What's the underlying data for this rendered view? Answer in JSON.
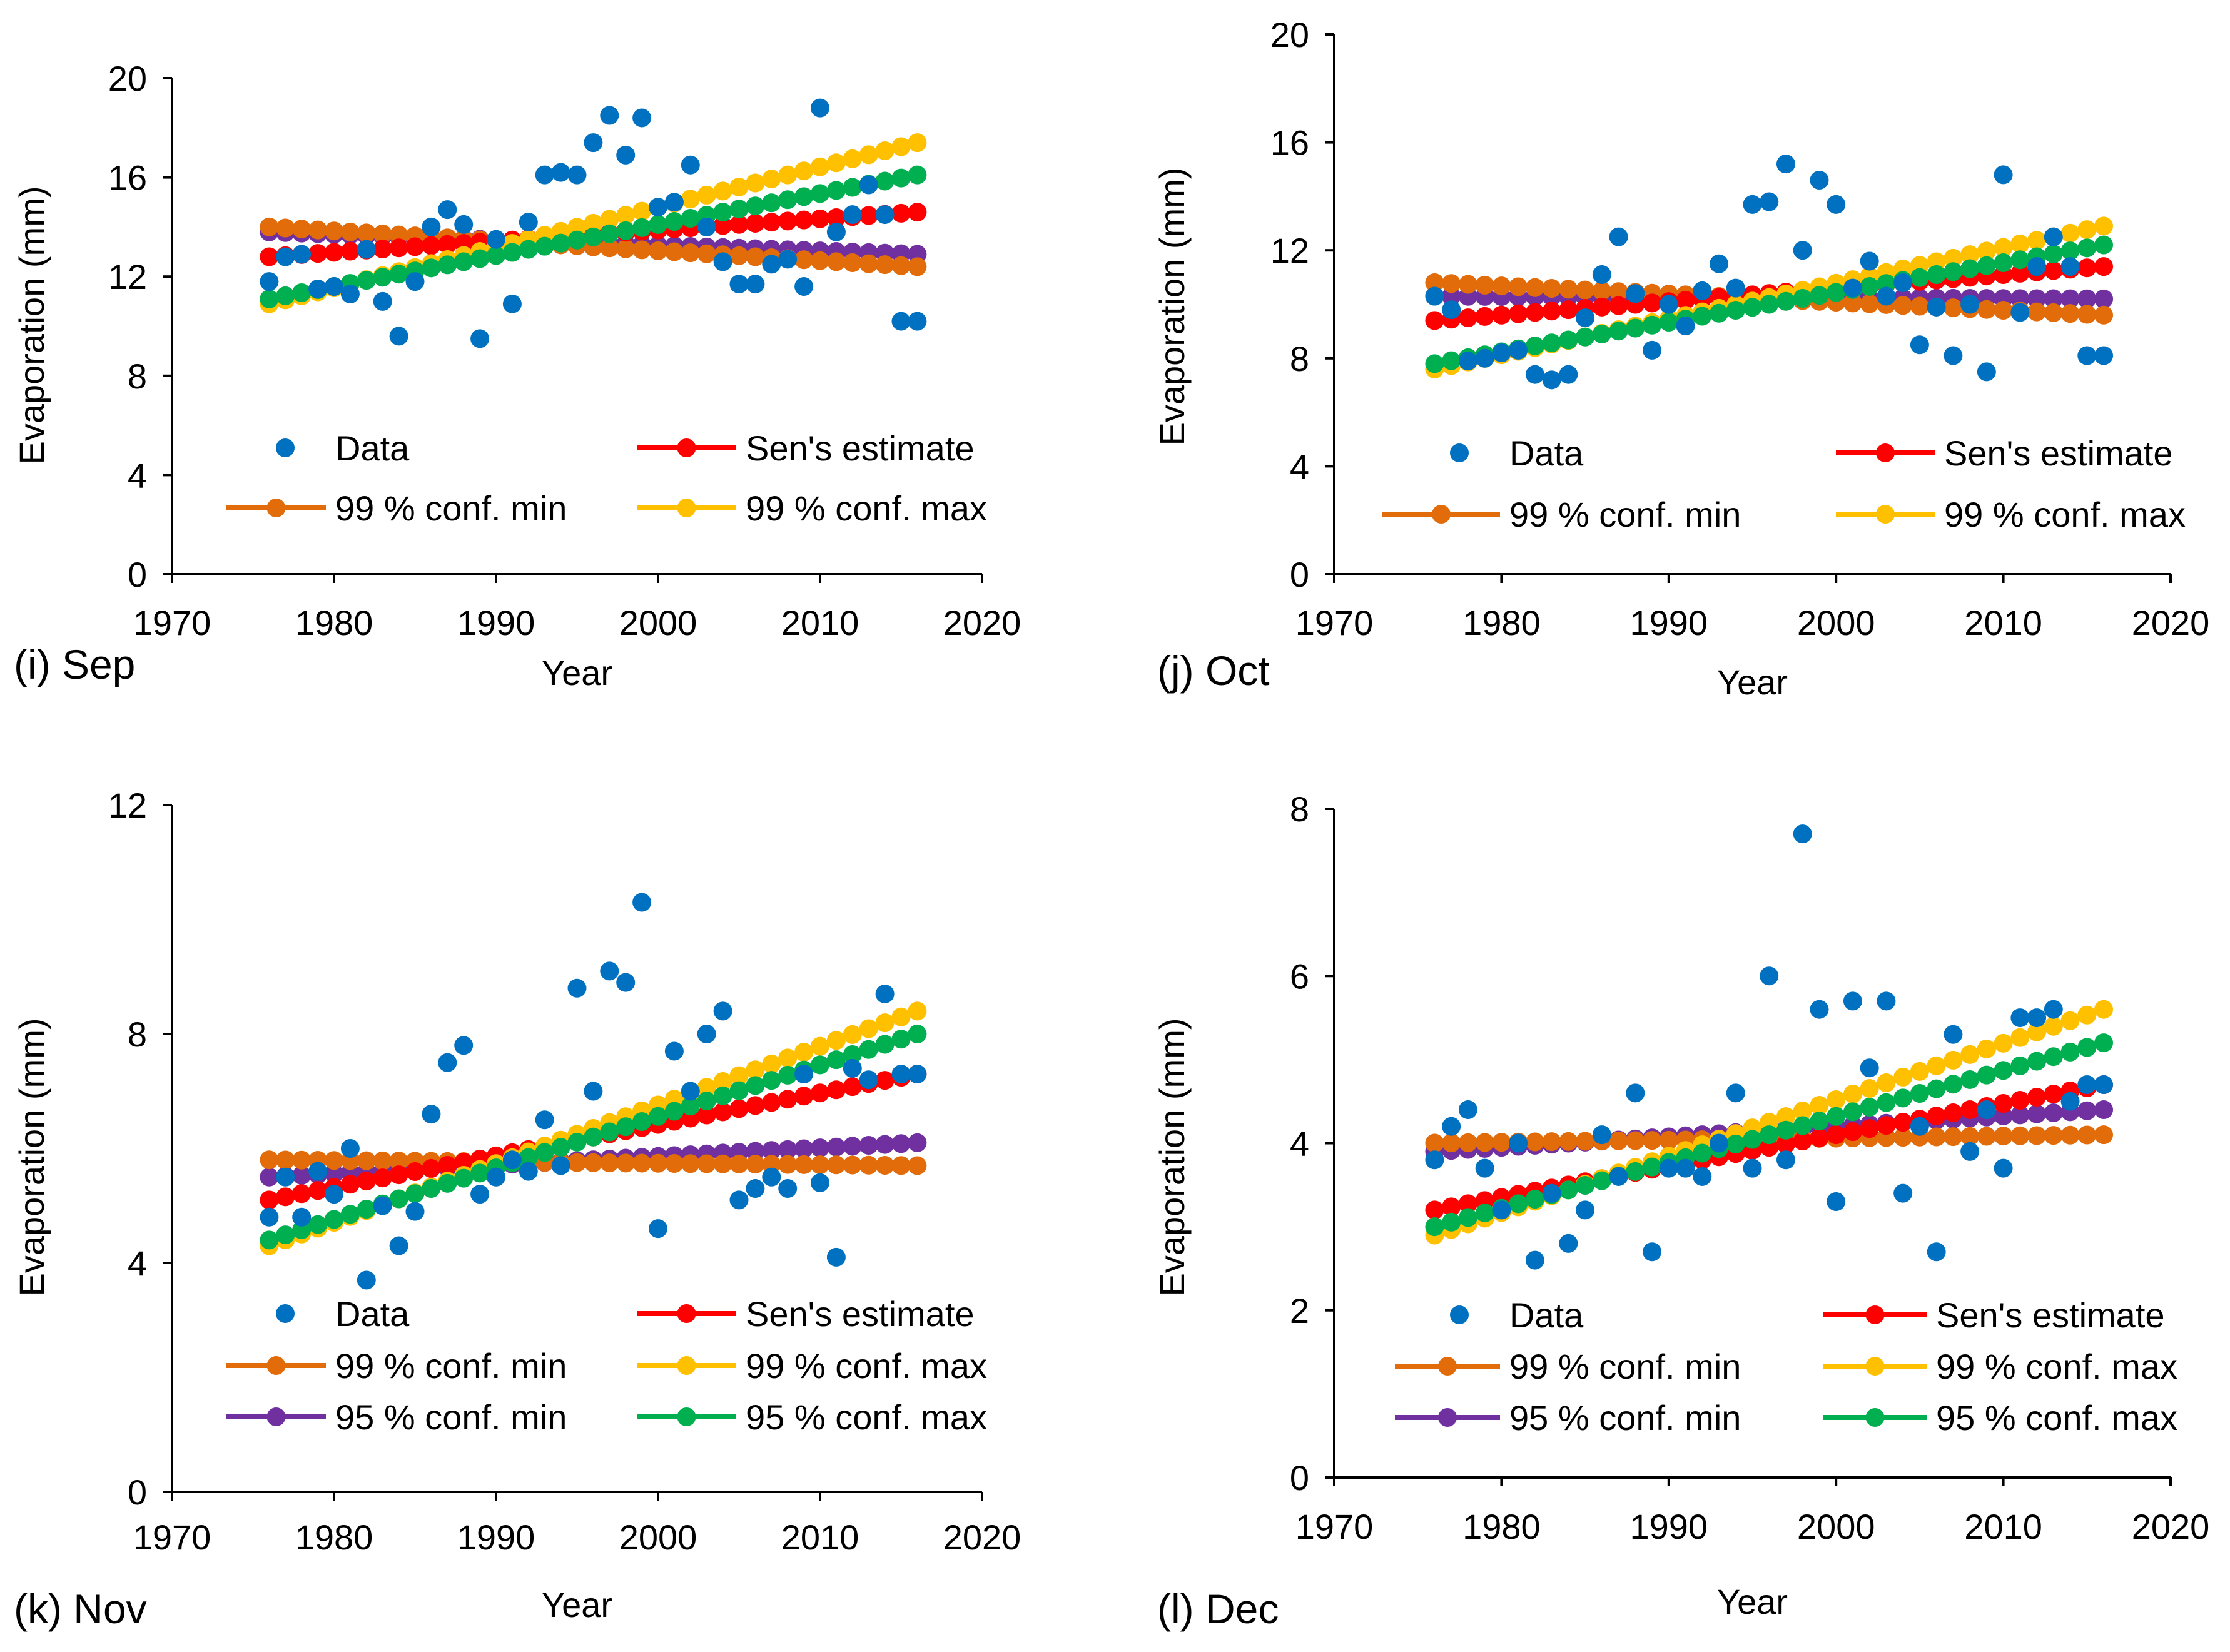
{
  "colors": {
    "data": "#0070C0",
    "sens_estimate": "#FF0000",
    "conf99_min": "#E36C0A",
    "conf99_max": "#FFC000",
    "conf95_min": "#7030A0",
    "conf95_max": "#00B050",
    "axis": "#000000"
  },
  "chart_data": [
    {
      "type": "scatter",
      "panel_label": "(i) Sep",
      "xlabel": "Year",
      "ylabel": "Evaporation (mm)",
      "xlim": [
        1970,
        2020
      ],
      "ylim": [
        0,
        20
      ],
      "x_ticks": [
        1970,
        1980,
        1990,
        2000,
        2010,
        2020
      ],
      "y_ticks": [
        0,
        4,
        8,
        12,
        16,
        20
      ],
      "grid": false,
      "legend": [
        {
          "key": "data",
          "label": "Data"
        },
        {
          "key": "sens_estimate",
          "label": "Sen's estimate"
        },
        {
          "key": "conf99_min",
          "label": "99 % conf. min"
        },
        {
          "key": "conf99_max",
          "label": "99 % conf. max"
        },
        {
          "key": "conf95_min",
          "label": ""
        },
        {
          "key": "conf95_max",
          "label": ""
        }
      ],
      "series": [
        {
          "name": "Data",
          "key": "data",
          "kind": "scatter",
          "x": [
            1976,
            1977,
            1978,
            1979,
            1980,
            1981,
            1982,
            1983,
            1984,
            1985,
            1986,
            1987,
            1988,
            1989,
            1990,
            1991,
            1992,
            1993,
            1994,
            1995,
            1996,
            1997,
            1998,
            1999,
            2000,
            2001,
            2002,
            2003,
            2004,
            2005,
            2006,
            2007,
            2008,
            2009,
            2010,
            2011,
            2012,
            2013,
            2014,
            2015,
            2016
          ],
          "y": [
            11.8,
            12.8,
            12.9,
            11.5,
            11.6,
            11.3,
            13.1,
            11.0,
            9.6,
            11.8,
            14.0,
            14.7,
            14.1,
            9.5,
            13.5,
            10.9,
            14.2,
            16.1,
            16.2,
            16.1,
            17.4,
            18.5,
            16.9,
            18.4,
            14.8,
            15.0,
            16.5,
            14.0,
            12.6,
            11.7,
            11.7,
            12.5,
            12.7,
            11.6,
            18.8,
            13.8,
            14.5,
            15.7,
            14.5,
            10.2,
            10.2
          ]
        },
        {
          "name": "Sen's estimate",
          "key": "sens_estimate",
          "kind": "line",
          "x_range": [
            1976,
            2016
          ],
          "y_range": [
            12.8,
            14.6
          ]
        },
        {
          "name": "99 % conf. min",
          "key": "conf99_min",
          "kind": "line",
          "x_range": [
            1976,
            2016
          ],
          "y_range": [
            14.0,
            12.4
          ]
        },
        {
          "name": "99 % conf. max",
          "key": "conf99_max",
          "kind": "line",
          "x_range": [
            1976,
            2016
          ],
          "y_range": [
            10.9,
            17.4
          ]
        },
        {
          "name": "95 % conf. min",
          "key": "conf95_min",
          "kind": "line",
          "x_range": [
            1976,
            2016
          ],
          "y_range": [
            13.8,
            12.9
          ]
        },
        {
          "name": "95 % conf. max",
          "key": "conf95_max",
          "kind": "line",
          "x_range": [
            1976,
            2016
          ],
          "y_range": [
            11.1,
            16.1
          ]
        }
      ]
    },
    {
      "type": "scatter",
      "panel_label": "(j) Oct",
      "xlabel": "Year",
      "ylabel": "Evaporation (mm)",
      "xlim": [
        1970,
        2020
      ],
      "ylim": [
        0,
        20
      ],
      "x_ticks": [
        1970,
        1980,
        1990,
        2000,
        2010,
        2020
      ],
      "y_ticks": [
        0,
        4,
        8,
        12,
        16,
        20
      ],
      "grid": false,
      "legend": [
        {
          "key": "data",
          "label": "Data"
        },
        {
          "key": "sens_estimate",
          "label": "Sen's estimate"
        },
        {
          "key": "conf99_min",
          "label": "99 % conf. min"
        },
        {
          "key": "conf99_max",
          "label": "99 % conf. max"
        },
        {
          "key": "conf95_min",
          "label": ""
        },
        {
          "key": "conf95_max",
          "label": ""
        }
      ],
      "series": [
        {
          "name": "Data",
          "key": "data",
          "kind": "scatter",
          "x": [
            1976,
            1977,
            1978,
            1979,
            1980,
            1981,
            1982,
            1983,
            1984,
            1985,
            1986,
            1987,
            1988,
            1989,
            1990,
            1991,
            1992,
            1993,
            1994,
            1995,
            1996,
            1997,
            1998,
            1999,
            2000,
            2001,
            2002,
            2003,
            2004,
            2005,
            2006,
            2007,
            2008,
            2009,
            2010,
            2011,
            2012,
            2013,
            2014,
            2015,
            2016
          ],
          "y": [
            10.3,
            9.8,
            7.9,
            8.0,
            8.2,
            8.3,
            7.4,
            7.2,
            7.4,
            9.5,
            11.1,
            12.5,
            10.4,
            8.3,
            10.0,
            9.2,
            10.5,
            11.5,
            10.6,
            13.7,
            13.8,
            15.2,
            12.0,
            14.6,
            13.7,
            10.6,
            11.6,
            10.3,
            10.8,
            8.5,
            9.9,
            8.1,
            10.0,
            7.5,
            14.8,
            9.7,
            11.4,
            12.5,
            11.4,
            8.1,
            8.1
          ]
        },
        {
          "name": "Sen's estimate",
          "key": "sens_estimate",
          "kind": "line",
          "x_range": [
            1976,
            2016
          ],
          "y_range": [
            9.4,
            11.4
          ]
        },
        {
          "name": "99 % conf. min",
          "key": "conf99_min",
          "kind": "line",
          "x_range": [
            1976,
            2016
          ],
          "y_range": [
            10.8,
            9.6
          ]
        },
        {
          "name": "99 % conf. max",
          "key": "conf99_max",
          "kind": "line",
          "x_range": [
            1976,
            2016
          ],
          "y_range": [
            7.6,
            12.9
          ]
        },
        {
          "name": "95 % conf. min",
          "key": "conf95_min",
          "kind": "line",
          "x_range": [
            1976,
            2016
          ],
          "y_range": [
            10.3,
            10.2
          ]
        },
        {
          "name": "95 % conf. max",
          "key": "conf95_max",
          "kind": "line",
          "x_range": [
            1976,
            2016
          ],
          "y_range": [
            7.8,
            12.2
          ]
        }
      ]
    },
    {
      "type": "scatter",
      "panel_label": "(k) Nov",
      "xlabel": "Year",
      "ylabel": "Evaporation (mm)",
      "xlim": [
        1970,
        2020
      ],
      "ylim": [
        0,
        12
      ],
      "x_ticks": [
        1970,
        1980,
        1990,
        2000,
        2010,
        2020
      ],
      "y_ticks": [
        0,
        4,
        8,
        12
      ],
      "grid": false,
      "legend": [
        {
          "key": "data",
          "label": "Data"
        },
        {
          "key": "sens_estimate",
          "label": "Sen's estimate"
        },
        {
          "key": "conf99_min",
          "label": "99 % conf. min"
        },
        {
          "key": "conf99_max",
          "label": "99 % conf. max"
        },
        {
          "key": "conf95_min",
          "label": "95 % conf. min"
        },
        {
          "key": "conf95_max",
          "label": "95 % conf. max"
        }
      ],
      "series": [
        {
          "name": "Data",
          "key": "data",
          "kind": "scatter",
          "x": [
            1976,
            1977,
            1978,
            1979,
            1980,
            1981,
            1982,
            1983,
            1984,
            1985,
            1986,
            1987,
            1988,
            1989,
            1990,
            1991,
            1992,
            1993,
            1994,
            1995,
            1996,
            1997,
            1998,
            1999,
            2000,
            2001,
            2002,
            2003,
            2004,
            2005,
            2006,
            2007,
            2008,
            2009,
            2010,
            2011,
            2012,
            2013,
            2014,
            2015,
            2016
          ],
          "y": [
            4.8,
            5.5,
            4.8,
            5.6,
            5.2,
            6.0,
            3.7,
            5.0,
            4.3,
            4.9,
            6.6,
            7.5,
            7.8,
            5.2,
            5.5,
            5.8,
            5.6,
            6.5,
            5.7,
            8.8,
            7.0,
            9.1,
            8.9,
            10.3,
            4.6,
            7.7,
            7.0,
            8.0,
            8.4,
            5.1,
            5.3,
            5.5,
            5.3,
            7.3,
            5.4,
            4.1,
            7.4,
            7.2,
            8.7,
            7.3,
            7.3
          ]
        },
        {
          "name": "Sen's estimate",
          "key": "sens_estimate",
          "kind": "line",
          "x_range": [
            1976,
            2016
          ],
          "y_range": [
            5.1,
            7.3
          ]
        },
        {
          "name": "99 % conf. min",
          "key": "conf99_min",
          "kind": "line",
          "x_range": [
            1976,
            2016
          ],
          "y_range": [
            5.8,
            5.7
          ]
        },
        {
          "name": "99 % conf. max",
          "key": "conf99_max",
          "kind": "line",
          "x_range": [
            1976,
            2016
          ],
          "y_range": [
            4.3,
            8.4
          ]
        },
        {
          "name": "95 % conf. min",
          "key": "conf95_min",
          "kind": "line",
          "x_range": [
            1976,
            2016
          ],
          "y_range": [
            5.5,
            6.1
          ]
        },
        {
          "name": "95 % conf. max",
          "key": "conf95_max",
          "kind": "line",
          "x_range": [
            1976,
            2016
          ],
          "y_range": [
            4.4,
            8.0
          ]
        }
      ]
    },
    {
      "type": "scatter",
      "panel_label": "(l) Dec",
      "xlabel": "Year",
      "ylabel": "Evaporation (mm)",
      "xlim": [
        1970,
        2020
      ],
      "ylim": [
        0,
        8
      ],
      "x_ticks": [
        1970,
        1980,
        1990,
        2000,
        2010,
        2020
      ],
      "y_ticks": [
        0,
        2,
        4,
        6,
        8
      ],
      "grid": false,
      "legend": [
        {
          "key": "data",
          "label": "Data"
        },
        {
          "key": "sens_estimate",
          "label": "Sen's estimate"
        },
        {
          "key": "conf99_min",
          "label": "99 % conf. min"
        },
        {
          "key": "conf99_max",
          "label": "99 % conf. max"
        },
        {
          "key": "conf95_min",
          "label": "95 % conf. min"
        },
        {
          "key": "conf95_max",
          "label": "95 % conf. max"
        }
      ],
      "series": [
        {
          "name": "Data",
          "key": "data",
          "kind": "scatter",
          "x": [
            1976,
            1977,
            1978,
            1979,
            1980,
            1981,
            1982,
            1983,
            1984,
            1985,
            1986,
            1987,
            1988,
            1989,
            1990,
            1991,
            1992,
            1993,
            1994,
            1995,
            1996,
            1997,
            1998,
            1999,
            2000,
            2001,
            2002,
            2003,
            2004,
            2005,
            2006,
            2007,
            2008,
            2009,
            2010,
            2011,
            2012,
            2013,
            2014,
            2015,
            2016
          ],
          "y": [
            3.8,
            4.2,
            4.4,
            3.7,
            3.2,
            4.0,
            2.6,
            3.4,
            2.8,
            3.2,
            4.1,
            3.6,
            4.6,
            2.7,
            3.7,
            3.7,
            3.6,
            4.0,
            4.6,
            3.7,
            6.0,
            3.8,
            7.7,
            5.6,
            3.3,
            5.7,
            4.9,
            5.7,
            3.4,
            4.2,
            2.7,
            5.3,
            3.9,
            4.4,
            3.7,
            5.5,
            5.5,
            5.6,
            4.5,
            4.7,
            4.7
          ]
        },
        {
          "name": "Sen's estimate",
          "key": "sens_estimate",
          "kind": "line",
          "x_range": [
            1976,
            2016
          ],
          "y_range": [
            3.2,
            4.7
          ]
        },
        {
          "name": "99 % conf. min",
          "key": "conf99_min",
          "kind": "line",
          "x_range": [
            1976,
            2016
          ],
          "y_range": [
            4.0,
            4.1
          ]
        },
        {
          "name": "99 % conf. max",
          "key": "conf99_max",
          "kind": "line",
          "x_range": [
            1976,
            2016
          ],
          "y_range": [
            2.9,
            5.6
          ]
        },
        {
          "name": "95 % conf. min",
          "key": "conf95_min",
          "kind": "line",
          "x_range": [
            1976,
            2016
          ],
          "y_range": [
            3.9,
            4.4
          ]
        },
        {
          "name": "95 % conf. max",
          "key": "conf95_max",
          "kind": "line",
          "x_range": [
            1976,
            2016
          ],
          "y_range": [
            3.0,
            5.2
          ]
        }
      ]
    }
  ]
}
